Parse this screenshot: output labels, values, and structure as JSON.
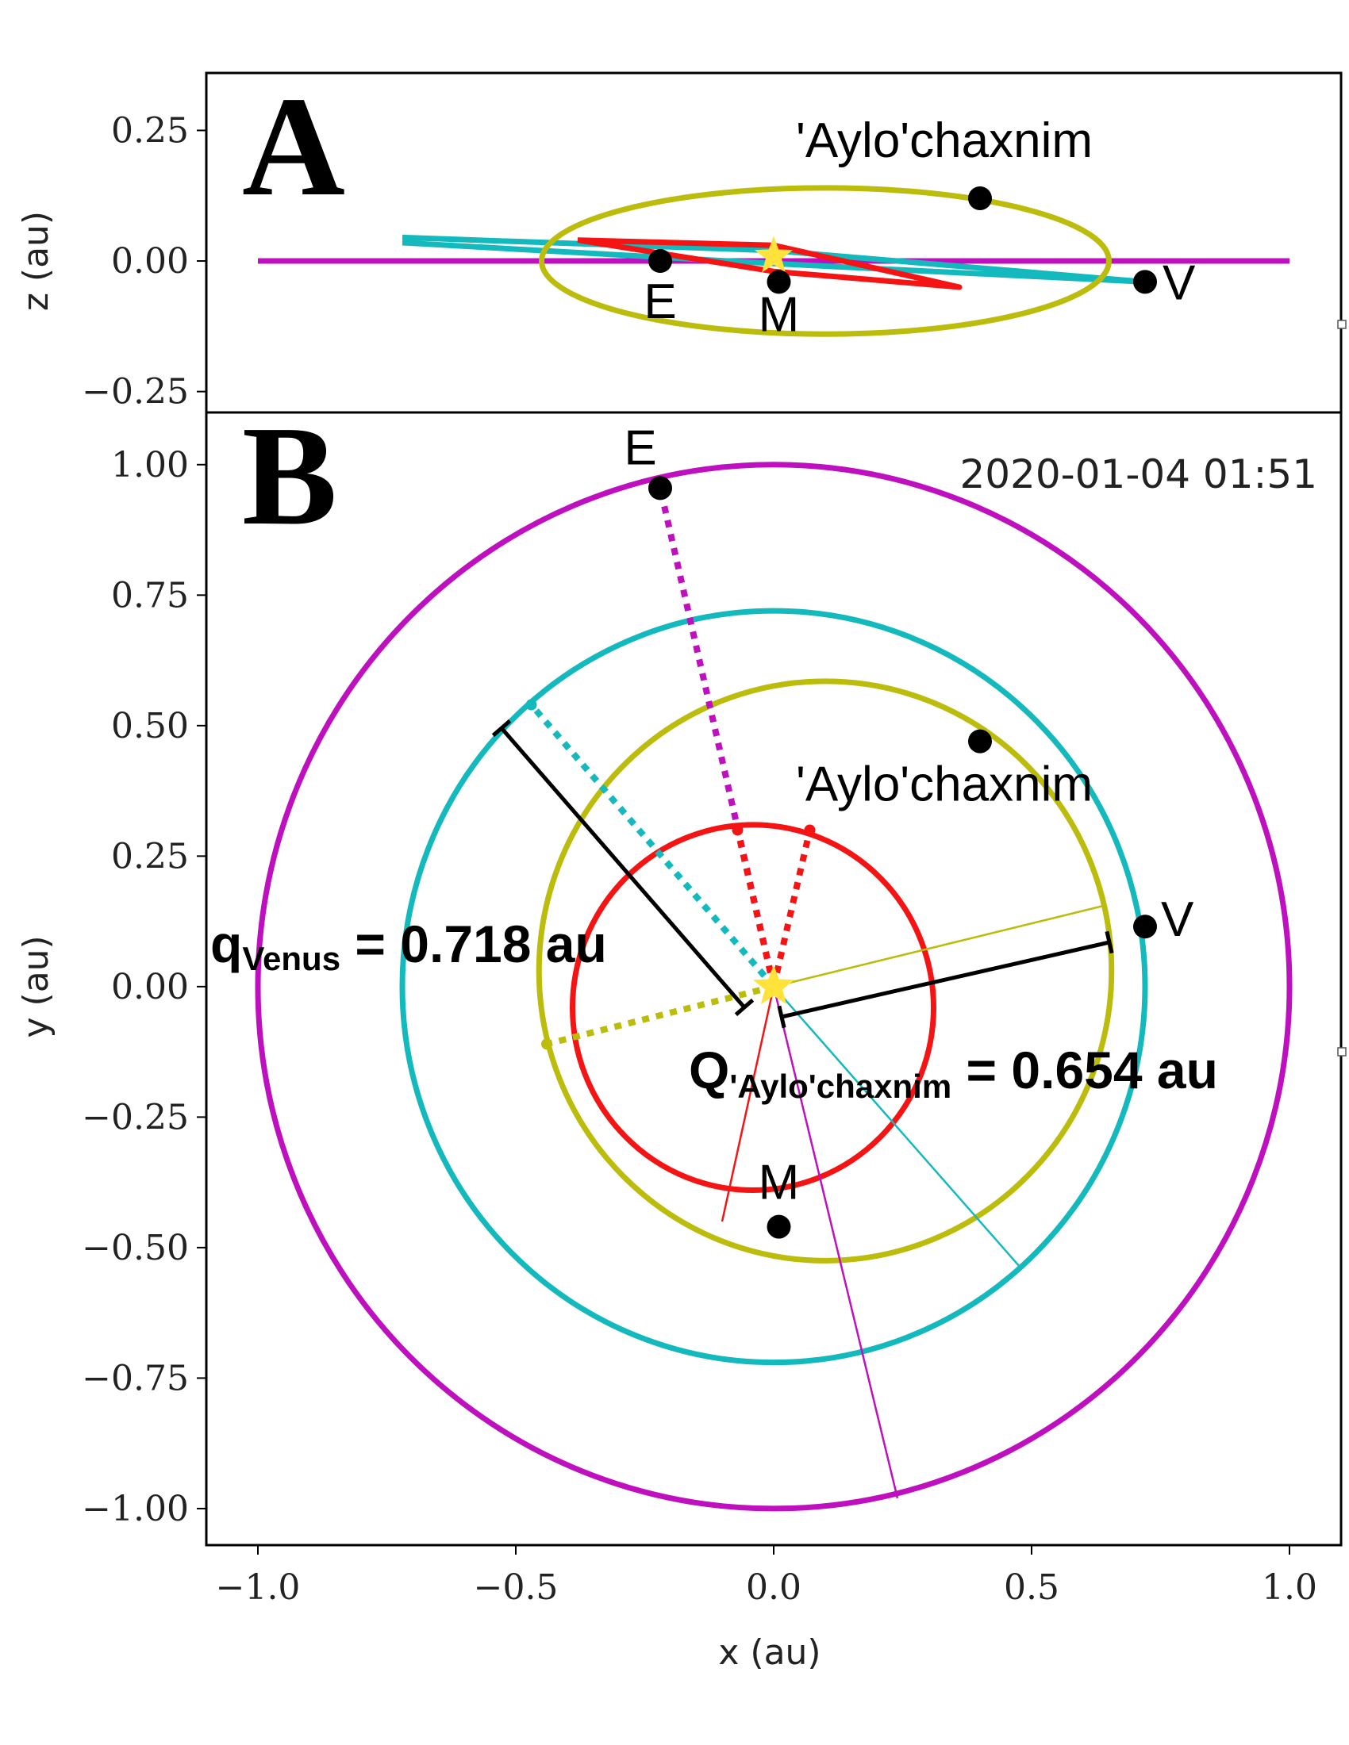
{
  "colors": {
    "earth": "#bf10bf",
    "venus": "#14b9be",
    "mercury": "#f51414",
    "aylochaxnim": "#bcbc0c",
    "sun": "#ffe33a",
    "marker": "#000000"
  },
  "chart_data": [
    {
      "panel": "A",
      "type": "scatter",
      "xlabel": "",
      "ylabel": "z (au)",
      "xlim": [
        -1.1,
        1.1
      ],
      "ylim": [
        -0.29,
        0.36
      ],
      "yticks": [
        {
          "value": 0.25,
          "label": "0.25"
        },
        {
          "value": 0.0,
          "label": "0.00"
        },
        {
          "value": -0.25,
          "label": "−0.25"
        }
      ],
      "orbits": [
        {
          "body": "Earth",
          "color": "#bf10bf",
          "points": [
            [
              -1.0,
              0.0
            ],
            [
              1.0,
              0.0
            ]
          ]
        },
        {
          "body": "Venus",
          "color": "#14b9be",
          "points": [
            [
              -0.72,
              0.045
            ],
            [
              0.0,
              0.02
            ],
            [
              0.72,
              -0.04
            ],
            [
              0.0,
              -0.005
            ],
            [
              -0.72,
              0.035
            ]
          ]
        },
        {
          "body": "Mercury",
          "color": "#f51414",
          "points": [
            [
              -0.38,
              0.04
            ],
            [
              0.0,
              0.03
            ],
            [
              0.36,
              -0.05
            ],
            [
              0.0,
              -0.02
            ],
            [
              -0.38,
              0.04
            ]
          ]
        },
        {
          "body": "'Aylo'chaxnim",
          "color": "#bcbc0c",
          "center": [
            0.1,
            0.0
          ],
          "rx": 0.55,
          "ry": 0.14
        }
      ],
      "bodies": [
        {
          "label": "E",
          "x": -0.22,
          "z": 0.0
        },
        {
          "label": "M",
          "x": 0.01,
          "z": -0.04
        },
        {
          "label": "V",
          "x": 0.72,
          "z": -0.04
        },
        {
          "label": "'Aylo'chaxnim",
          "x": 0.4,
          "z": 0.12
        }
      ],
      "sun": {
        "x": 0.0,
        "z": 0.0
      }
    },
    {
      "panel": "B",
      "type": "scatter",
      "xlabel": "x (au)",
      "ylabel": "y (au)",
      "xlim": [
        -1.1,
        1.1
      ],
      "ylim": [
        -1.07,
        1.1
      ],
      "timestamp": "2020-01-04 01:51",
      "xticks": [
        {
          "value": -1.0,
          "label": "−1.0"
        },
        {
          "value": -0.5,
          "label": "−0.5"
        },
        {
          "value": 0.0,
          "label": "0.0"
        },
        {
          "value": 0.5,
          "label": "0.5"
        },
        {
          "value": 1.0,
          "label": "1.0"
        }
      ],
      "yticks": [
        {
          "value": 1.0,
          "label": "1.00"
        },
        {
          "value": 0.75,
          "label": "0.75"
        },
        {
          "value": 0.5,
          "label": "0.50"
        },
        {
          "value": 0.25,
          "label": "0.25"
        },
        {
          "value": 0.0,
          "label": "0.00"
        },
        {
          "value": -0.25,
          "label": "−0.25"
        },
        {
          "value": -0.5,
          "label": "−0.50"
        },
        {
          "value": -0.75,
          "label": "−0.75"
        },
        {
          "value": -1.0,
          "label": "−1.00"
        }
      ],
      "orbits": [
        {
          "body": "Earth",
          "color": "#bf10bf",
          "center": [
            0.0,
            0.0
          ],
          "r": 1.0
        },
        {
          "body": "Venus",
          "color": "#14b9be",
          "center": [
            0.0,
            0.0
          ],
          "r": 0.72
        },
        {
          "body": "Mercury",
          "color": "#f51414",
          "center": [
            -0.04,
            -0.04
          ],
          "r": 0.35
        },
        {
          "body": "'Aylo'chaxnim",
          "color": "#bcbc0c",
          "center": [
            0.1,
            0.03
          ],
          "r": 0.555
        }
      ],
      "bodies": [
        {
          "label": "E",
          "x": -0.22,
          "y": 0.955
        },
        {
          "label": "V",
          "x": 0.72,
          "y": 0.115
        },
        {
          "label": "M",
          "x": 0.01,
          "y": -0.46
        },
        {
          "label": "'Aylo'chaxnim",
          "x": 0.4,
          "y": 0.47
        }
      ],
      "sun": {
        "x": 0.0,
        "y": 0.0
      },
      "dotted_rays": [
        {
          "color": "#bf10bf",
          "to": [
            -0.22,
            0.955
          ]
        },
        {
          "color": "#14b9be",
          "to": [
            -0.47,
            0.54
          ]
        },
        {
          "color": "#f51414",
          "to": [
            0.07,
            0.3
          ]
        },
        {
          "color": "#f51414",
          "to": [
            -0.07,
            0.3
          ]
        },
        {
          "color": "#bcbc0c",
          "to": [
            -0.44,
            -0.11
          ]
        }
      ],
      "thin_rays": [
        {
          "color": "#bcbc0c",
          "to": [
            0.64,
            0.155
          ]
        },
        {
          "color": "#f51414",
          "to": [
            -0.1,
            -0.45
          ]
        },
        {
          "color": "#14b9be",
          "to": [
            0.48,
            -0.54
          ]
        },
        {
          "color": "#bf10bf",
          "to": [
            0.24,
            -0.98
          ]
        }
      ],
      "annotations": {
        "q_venus": {
          "main": "q",
          "sub": "Venus",
          "rest": " = 0.718 au"
        },
        "Q_aylo": {
          "main": "Q",
          "sub": "'Aylo'chaxnim",
          "rest": " = 0.654 au"
        }
      }
    }
  ]
}
